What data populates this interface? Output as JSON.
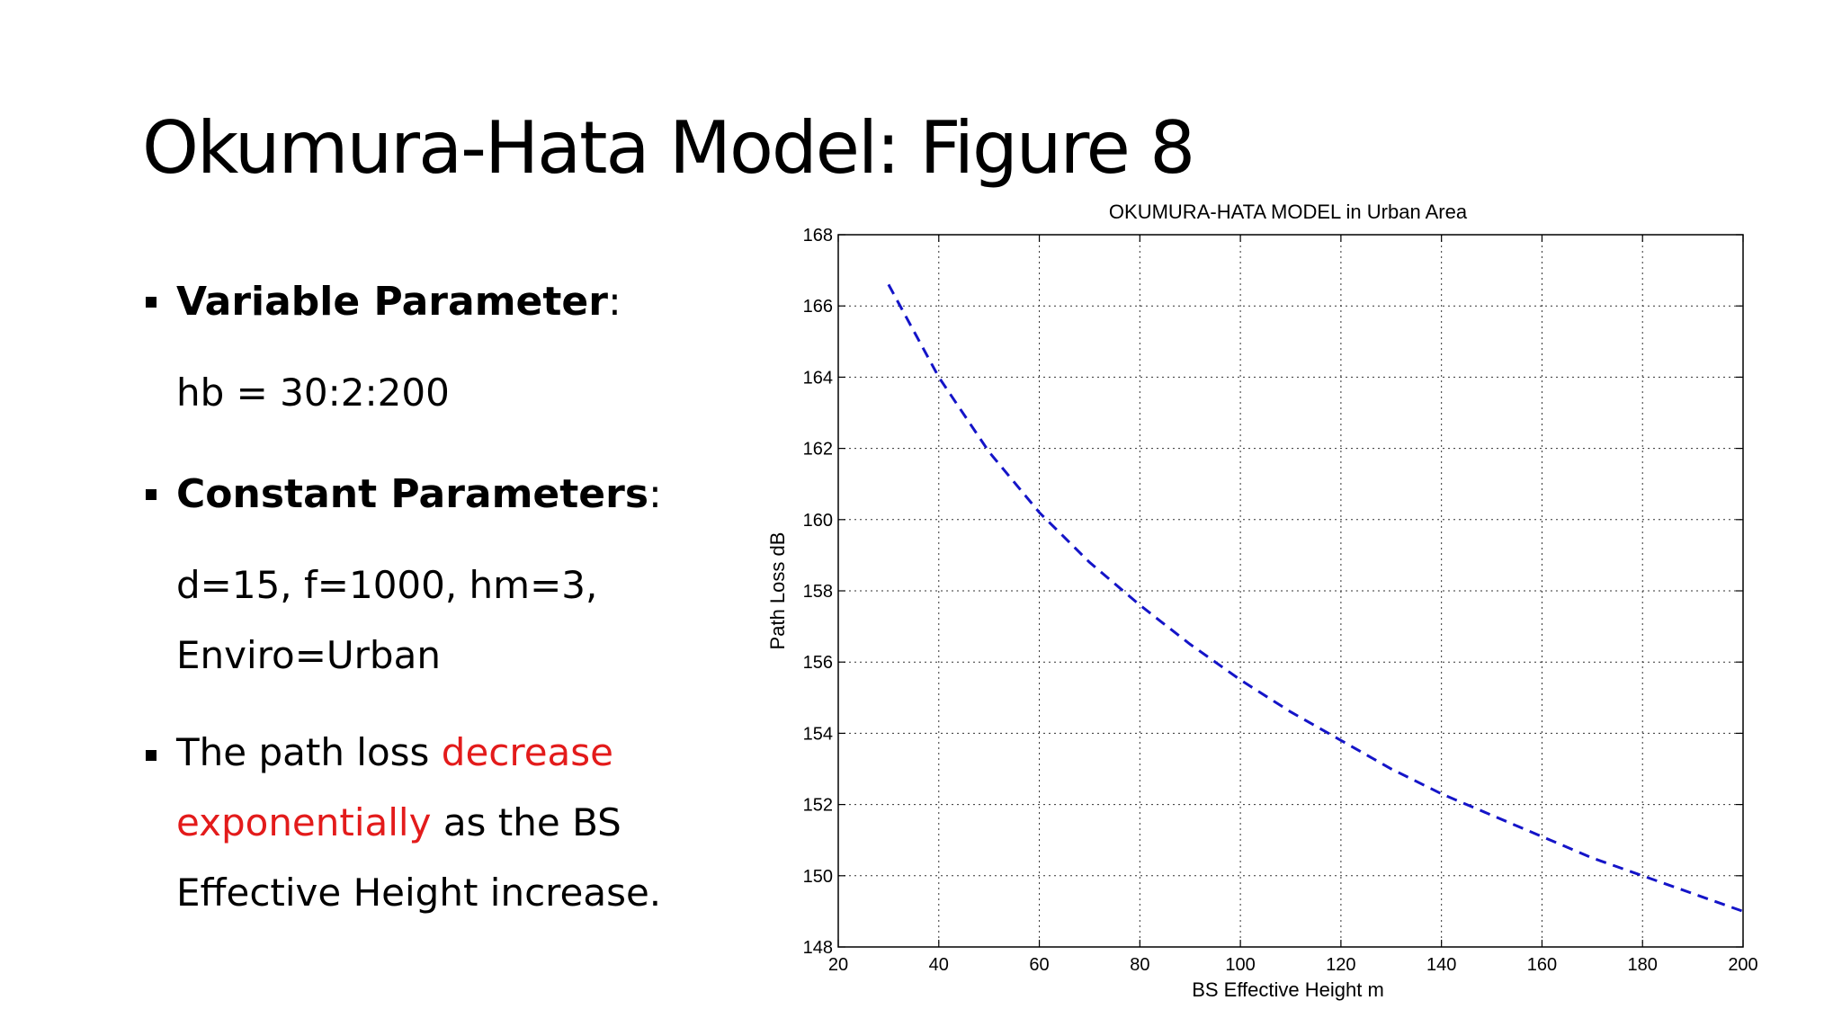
{
  "slide": {
    "title": "Okumura-Hata Model: Figure 8"
  },
  "content": {
    "variable_heading": "Variable Parameter",
    "variable_colon": ":",
    "variable_value": "hb = 30:2:200",
    "constant_heading": "Constant Parameters",
    "constant_colon": ":",
    "constant_line1": "d=15, f=1000, hm=3,",
    "constant_line2": "Enviro=Urban",
    "note_part1": "The path loss ",
    "note_red1": "decrease",
    "note_red2": "exponentially",
    "note_part2": " as the BS",
    "note_line3": "Effective Height increase."
  },
  "colors": {
    "highlight": "#e31b1b",
    "series": "#1414c8"
  },
  "chart_data": {
    "type": "line",
    "title": "OKUMURA-HATA MODEL in Urban Area",
    "xlabel": "BS Effective Height m",
    "ylabel": "Path Loss dB",
    "xlim": [
      20,
      200
    ],
    "ylim": [
      148,
      168
    ],
    "xticks": [
      20,
      40,
      60,
      80,
      100,
      120,
      140,
      160,
      180,
      200
    ],
    "yticks": [
      148,
      150,
      152,
      154,
      156,
      158,
      160,
      162,
      164,
      166,
      168
    ],
    "grid": true,
    "line_style": "dashed",
    "series": [
      {
        "x": [
          30,
          40,
          50,
          60,
          70,
          80,
          90,
          100,
          110,
          120,
          130,
          140,
          150,
          160,
          170,
          180,
          190,
          200
        ],
        "y": [
          166.6,
          164.0,
          161.9,
          160.2,
          158.8,
          157.6,
          156.5,
          155.5,
          154.6,
          153.8,
          153.0,
          152.3,
          151.7,
          151.1,
          150.5,
          150.0,
          149.5,
          149.0
        ]
      }
    ]
  }
}
